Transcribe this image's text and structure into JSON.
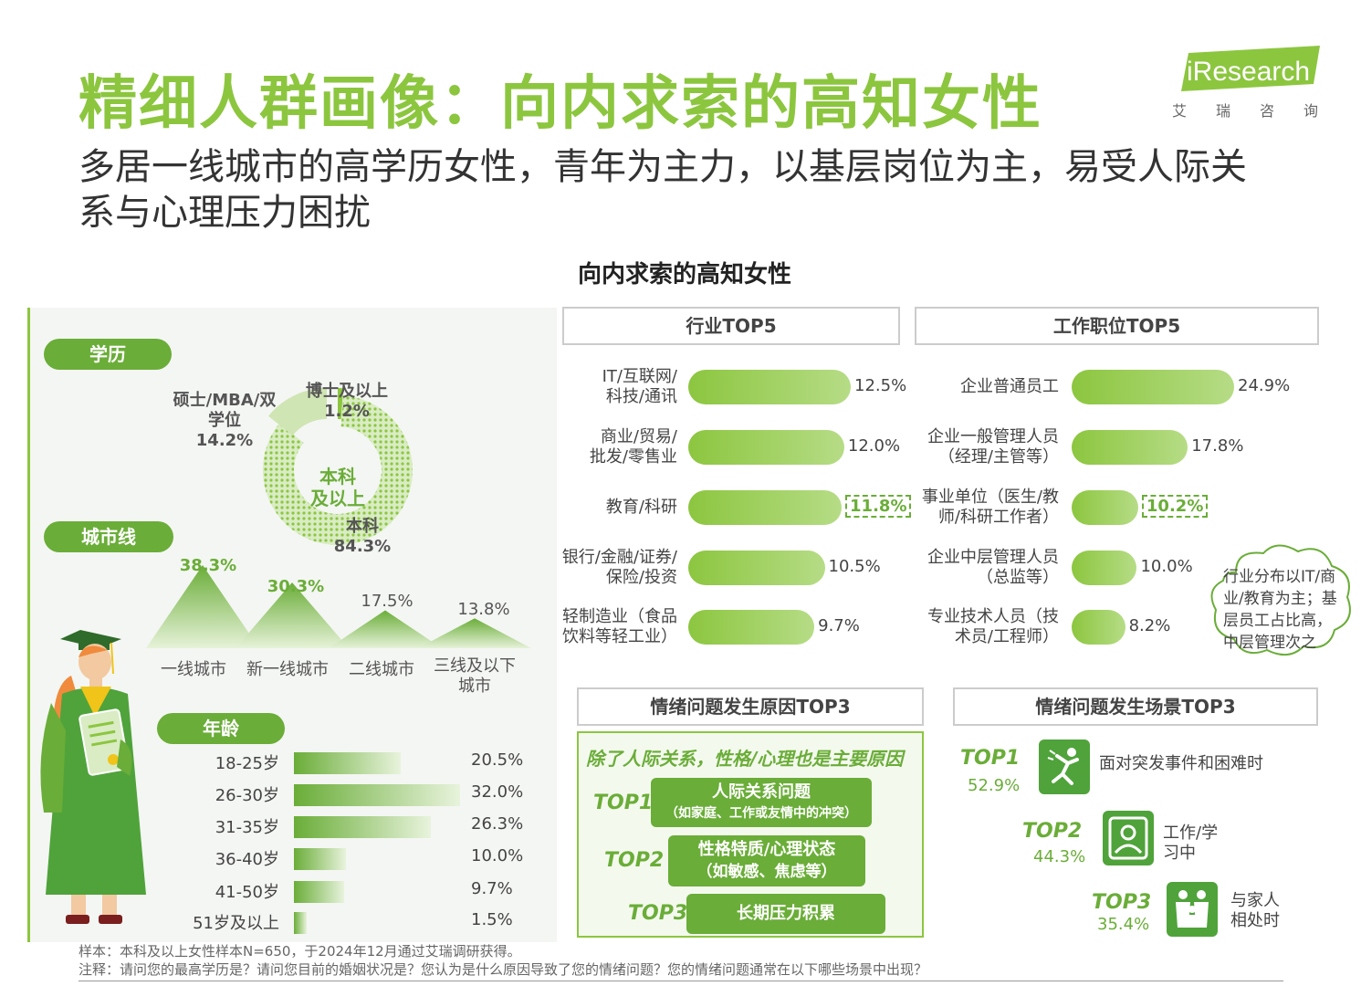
{
  "header": {
    "title": "精细人群画像：向内求索的高知女性",
    "subtitle": "多居一线城市的高学历女性，青年为主力，以基层岗位为主，易受人际关系与心理压力困扰",
    "logo_text": "iResearch",
    "logo_cn": [
      "艾",
      "瑞",
      "咨",
      "询"
    ]
  },
  "chart_title": "向内求索的高知女性",
  "colors": {
    "accent": "#8cc63f",
    "dark_green": "#6aad38",
    "icon_green": "#4fa33a"
  },
  "chart_data": [
    {
      "type": "pie",
      "section": "学历",
      "center_label": "本科及以上",
      "slices": [
        {
          "label": "本科",
          "value": 84.3,
          "value_text": "84.3%"
        },
        {
          "label": "硕士/MBA/双学位",
          "value": 14.2,
          "value_text": "14.2%"
        },
        {
          "label": "博士及以上",
          "value": 1.2,
          "value_text": "1.2%"
        }
      ]
    },
    {
      "type": "area",
      "section": "城市线",
      "categories": [
        "一线城市",
        "新一线城市",
        "二线城市",
        "三线及以下城市"
      ],
      "values": [
        38.3,
        30.3,
        17.5,
        13.8
      ],
      "value_texts": [
        "38.3%",
        "30.3%",
        "17.5%",
        "13.8%"
      ]
    },
    {
      "type": "bar",
      "section": "年龄",
      "categories": [
        "18-25岁",
        "26-30岁",
        "31-35岁",
        "36-40岁",
        "41-50岁",
        "51岁及以上"
      ],
      "values": [
        20.5,
        32.0,
        26.3,
        10.0,
        9.7,
        1.5
      ],
      "value_texts": [
        "20.5%",
        "32.0%",
        "26.3%",
        "10.0%",
        "9.7%",
        "1.5%"
      ]
    },
    {
      "type": "bar",
      "section": "行业TOP5",
      "categories": [
        "IT/互联网/科技/通讯",
        "商业/贸易/批发/零售业",
        "教育/科研",
        "银行/金融/证券/保险/投资",
        "轻制造业（食品饮料等轻工业）"
      ],
      "values": [
        12.5,
        12.0,
        11.8,
        10.5,
        9.7
      ],
      "value_texts": [
        "12.5%",
        "12.0%",
        "11.8%",
        "10.5%",
        "9.7%"
      ]
    },
    {
      "type": "bar",
      "section": "工作职位TOP5",
      "categories": [
        "企业普通员工",
        "企业一般管理人员（经理/主管等）",
        "事业单位（医生/教师/科研工作者）",
        "企业中层管理人员（总监等）",
        "专业技术人员（技术员/工程师）"
      ],
      "values": [
        24.9,
        17.8,
        10.2,
        10.0,
        8.2
      ],
      "value_texts": [
        "24.9%",
        "17.8%",
        "10.2%",
        "10.0%",
        "8.2%"
      ]
    }
  ],
  "left": {
    "edu_label": "学历",
    "city_label": "城市线",
    "age_label": "年龄",
    "edu": {
      "master_l1": "硕士/MBA/双",
      "master_l2": "学位",
      "master_val": "14.2%",
      "phd": "博士及以上",
      "phd_val": "1.2%",
      "center_l1": "本科",
      "center_l2": "及以上",
      "bachelor": "本科",
      "bachelor_val": "84.3%"
    },
    "city": {
      "labels": [
        "一线城市",
        "新一线城市",
        "二线城市",
        "三线及以下"
      ],
      "label4_l2": "城市",
      "vals": [
        "38.3%",
        "30.3%",
        "17.5%",
        "13.8%"
      ]
    },
    "age": {
      "labels": [
        "18-25岁",
        "26-30岁",
        "31-35岁",
        "36-40岁",
        "41-50岁",
        "51岁及以上"
      ],
      "vals": [
        "20.5%",
        "32.0%",
        "26.3%",
        "10.0%",
        "9.7%",
        "1.5%"
      ]
    }
  },
  "industry": {
    "title": "行业TOP5",
    "items": [
      {
        "l1": "IT/互联网/",
        "l2": "科技/通讯",
        "val": "12.5%"
      },
      {
        "l1": "商业/贸易/",
        "l2": "批发/零售业",
        "val": "12.0%"
      },
      {
        "l1": "教育/科研",
        "l2": "",
        "val": "11.8%"
      },
      {
        "l1": "银行/金融/证券/",
        "l2": "保险/投资",
        "val": "10.5%"
      },
      {
        "l1": "轻制造业（食品",
        "l2": "饮料等轻工业）",
        "val": "9.7%"
      }
    ]
  },
  "position": {
    "title": "工作职位TOP5",
    "items": [
      {
        "l1": "企业普通员工",
        "l2": "",
        "val": "24.9%"
      },
      {
        "l1": "企业一般管理人员",
        "l2": "（经理/主管等）",
        "val": "17.8%"
      },
      {
        "l1": "事业单位（医生/教",
        "l2": "师/科研工作者）",
        "val": "10.2%"
      },
      {
        "l1": "企业中层管理人员",
        "l2": "（总监等）",
        "val": "10.0%"
      },
      {
        "l1": "专业技术人员（技",
        "l2": "术员/工程师）",
        "val": "8.2%"
      }
    ]
  },
  "cloud_note": {
    "l1": "行业分布以IT/商",
    "l2": "业/教育为主；基",
    "l3": "层员工占比高，",
    "l4": "中层管理次之"
  },
  "reasons": {
    "title": "情绪问题发生原因TOP3",
    "headline": "除了人际关系，性格/心理也是主要原因",
    "items": [
      {
        "tag": "TOP1",
        "l1": "人际关系问题",
        "l2": "（如家庭、工作或友情中的冲突）"
      },
      {
        "tag": "TOP2",
        "l1": "性格特质/心理状态",
        "l2": "（如敏感、焦虑等）"
      },
      {
        "tag": "TOP3",
        "l1": "长期压力积累",
        "l2": ""
      }
    ]
  },
  "scenes": {
    "title": "情绪问题发生场景TOP3",
    "items": [
      {
        "tag": "TOP1",
        "pct": "52.9%",
        "l1": "面对突发事件和困难时",
        "l2": ""
      },
      {
        "tag": "TOP2",
        "pct": "44.3%",
        "l1": "工作/学",
        "l2": "习中"
      },
      {
        "tag": "TOP3",
        "pct": "35.4%",
        "l1": "与家人",
        "l2": "相处时"
      }
    ]
  },
  "footnotes": {
    "sample": "样本：本科及以上女性样本N=650，于2024年12月通过艾瑞调研获得。",
    "note": "注释：请问您的最高学历是？请问您目前的婚姻状况是？您认为是什么原因导致了您的情绪问题？您的情绪问题通常在以下哪些场景中出现？"
  }
}
